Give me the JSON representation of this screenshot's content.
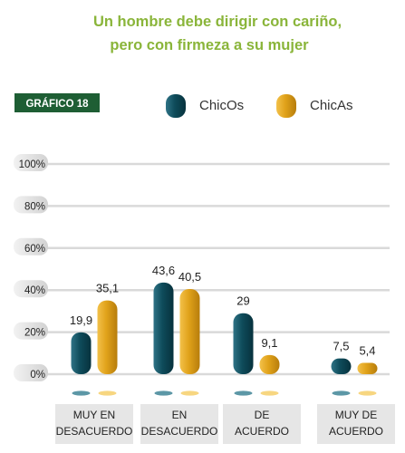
{
  "title_line1": "Un hombre debe dirigir con cariño,",
  "title_line2": "pero con firmeza a su mujer",
  "badge": "GRÁFICO 18",
  "colors": {
    "title": "#8ab53a",
    "badge_bg": "#1e5e34",
    "chicos": "#0e4b5a",
    "chicos_light": "#3f8597",
    "chicas": "#e0a21a",
    "chicas_light": "#f6cf6a",
    "grid": "#d9d9d9",
    "tick_bg": "#dcdcdc",
    "label_box": "#e6e6e6"
  },
  "chart_data": {
    "type": "bar",
    "title": "Un hombre debe dirigir con cariño, pero con firmeza a su mujer",
    "categories": [
      [
        "MUY EN",
        "DESACUERDO"
      ],
      [
        "EN",
        "DESACUERDO"
      ],
      [
        "DE",
        "ACUERDO"
      ],
      [
        "MUY DE",
        "ACUERDO"
      ]
    ],
    "series": [
      {
        "name": "ChicOs",
        "values": [
          19.9,
          43.6,
          29,
          7.5
        ],
        "labels": [
          "19,9",
          "43,6",
          "29",
          "7,5"
        ]
      },
      {
        "name": "ChicAs",
        "values": [
          35.1,
          40.5,
          9.1,
          5.4
        ],
        "labels": [
          "35,1",
          "40,5",
          "9,1",
          "5,4"
        ]
      }
    ],
    "yticks": [
      "0%",
      "20%",
      "40%",
      "60%",
      "80%",
      "100%"
    ],
    "ylim": [
      0,
      100
    ],
    "legend_position": "top",
    "grid": true
  }
}
